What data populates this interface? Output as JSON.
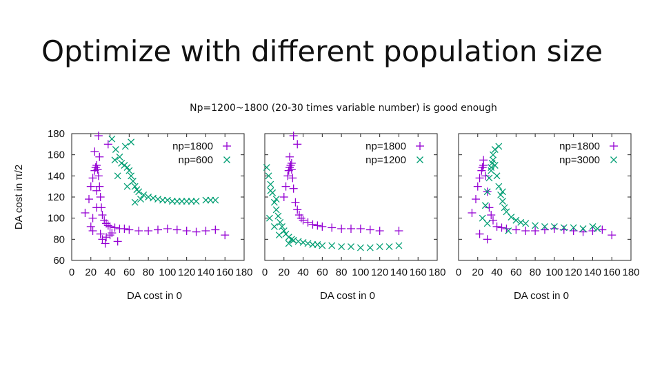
{
  "slide": {
    "title": "Optimize with different population size",
    "subtitle": "Np=1200~1800 (20-30 times variable number) is good enough"
  },
  "colors": {
    "purple": "#9400d3",
    "green": "#009e73",
    "axis": "#222222"
  },
  "chart_data": [
    {
      "type": "scatter",
      "title": "",
      "xlabel": "DA cost in 0",
      "ylabel": "DA cost in π/2",
      "xlim": [
        0,
        180
      ],
      "ylim": [
        60,
        180
      ],
      "xticks": [
        0,
        20,
        40,
        60,
        80,
        100,
        120,
        140,
        160,
        180
      ],
      "yticks": [
        60,
        80,
        100,
        120,
        140,
        160,
        180
      ],
      "legend_position": "top-right",
      "series": [
        {
          "name": "np=1800",
          "marker": "plus",
          "color": "#9400d3",
          "x": [
            14,
            18,
            20,
            22,
            24,
            25,
            26,
            27,
            28,
            29,
            30,
            31,
            32,
            34,
            36,
            38,
            40,
            45,
            50,
            55,
            60,
            70,
            80,
            90,
            100,
            110,
            120,
            130,
            140,
            150,
            20,
            22,
            26,
            30,
            36,
            24,
            28,
            32,
            42,
            48,
            35,
            40,
            29,
            160,
            38,
            26,
            22
          ],
          "y": [
            105,
            118,
            130,
            138,
            145,
            148,
            150,
            146,
            140,
            130,
            120,
            110,
            103,
            98,
            95,
            93,
            92,
            91,
            90,
            90,
            89,
            88,
            88,
            89,
            90,
            89,
            88,
            87,
            88,
            89,
            92,
            100,
            110,
            85,
            82,
            163,
            178,
            80,
            86,
            78,
            76,
            84,
            158,
            84,
            170,
            126,
            88
          ]
        },
        {
          "name": "np=600",
          "marker": "cross",
          "color": "#009e73",
          "x": [
            42,
            46,
            50,
            52,
            55,
            58,
            60,
            62,
            64,
            66,
            68,
            70,
            75,
            80,
            85,
            90,
            95,
            100,
            105,
            110,
            115,
            120,
            125,
            130,
            140,
            145,
            150,
            56,
            62,
            48,
            72,
            66,
            58,
            45
          ],
          "y": [
            175,
            165,
            158,
            152,
            150,
            148,
            145,
            140,
            135,
            130,
            127,
            125,
            122,
            120,
            119,
            118,
            117,
            117,
            116,
            116,
            116,
            116,
            116,
            116,
            117,
            117,
            117,
            168,
            172,
            140,
            118,
            115,
            130,
            155
          ]
        }
      ]
    },
    {
      "type": "scatter",
      "title": "",
      "xlabel": "DA cost in 0",
      "ylabel": "",
      "xlim": [
        0,
        180
      ],
      "ylim": [
        60,
        180
      ],
      "xticks": [
        0,
        20,
        40,
        60,
        80,
        100,
        120,
        140,
        160,
        180
      ],
      "yticks": [
        60,
        80,
        100,
        120,
        140,
        160,
        180
      ],
      "legend_position": "top-right",
      "series": [
        {
          "name": "np=1800",
          "marker": "plus",
          "color": "#9400d3",
          "x": [
            20,
            22,
            24,
            25,
            26,
            27,
            28,
            29,
            30,
            32,
            34,
            36,
            38,
            40,
            45,
            50,
            55,
            60,
            70,
            80,
            90,
            100,
            110,
            120,
            140,
            30,
            34,
            26,
            28
          ],
          "y": [
            120,
            130,
            140,
            145,
            148,
            150,
            146,
            138,
            128,
            115,
            108,
            103,
            100,
            98,
            96,
            94,
            93,
            92,
            91,
            90,
            90,
            90,
            89,
            88,
            88,
            178,
            170,
            158,
            152
          ]
        },
        {
          "name": "np=1200",
          "marker": "cross",
          "color": "#009e73",
          "x": [
            2,
            4,
            6,
            8,
            10,
            12,
            14,
            16,
            18,
            20,
            22,
            25,
            28,
            30,
            35,
            40,
            45,
            50,
            55,
            60,
            70,
            80,
            90,
            100,
            110,
            120,
            130,
            140,
            5,
            10,
            15,
            25,
            6,
            12
          ],
          "y": [
            148,
            140,
            132,
            124,
            115,
            108,
            102,
            96,
            92,
            88,
            85,
            82,
            80,
            79,
            78,
            77,
            76,
            75,
            75,
            74,
            74,
            73,
            73,
            72,
            72,
            73,
            73,
            74,
            100,
            92,
            84,
            76,
            126,
            118
          ]
        }
      ]
    },
    {
      "type": "scatter",
      "title": "",
      "xlabel": "DA cost in 0",
      "ylabel": "",
      "xlim": [
        0,
        180
      ],
      "ylim": [
        60,
        180
      ],
      "xticks": [
        0,
        20,
        40,
        60,
        80,
        100,
        120,
        140,
        160,
        180
      ],
      "yticks": [
        60,
        80,
        100,
        120,
        140,
        160,
        180
      ],
      "legend_position": "top-right",
      "series": [
        {
          "name": "np=1800",
          "marker": "plus",
          "color": "#9400d3",
          "x": [
            14,
            18,
            20,
            22,
            24,
            25,
            26,
            28,
            30,
            32,
            34,
            36,
            40,
            45,
            50,
            60,
            70,
            80,
            90,
            100,
            110,
            120,
            130,
            140,
            150,
            160,
            30,
            26,
            22
          ],
          "y": [
            105,
            118,
            130,
            138,
            145,
            148,
            150,
            140,
            125,
            110,
            103,
            98,
            92,
            91,
            90,
            89,
            88,
            88,
            89,
            90,
            89,
            88,
            87,
            88,
            89,
            84,
            80,
            155,
            85
          ]
        },
        {
          "name": "np=3000",
          "marker": "cross",
          "color": "#009e73",
          "x": [
            25,
            28,
            30,
            32,
            34,
            35,
            36,
            38,
            40,
            42,
            44,
            46,
            48,
            50,
            55,
            60,
            65,
            70,
            80,
            90,
            100,
            110,
            120,
            130,
            140,
            145,
            38,
            42,
            36,
            34,
            46,
            30,
            52
          ],
          "y": [
            100,
            112,
            125,
            138,
            148,
            152,
            155,
            150,
            140,
            130,
            122,
            116,
            110,
            106,
            101,
            98,
            96,
            95,
            93,
            92,
            92,
            91,
            91,
            90,
            92,
            90,
            165,
            168,
            160,
            145,
            125,
            95,
            88
          ]
        }
      ]
    }
  ]
}
